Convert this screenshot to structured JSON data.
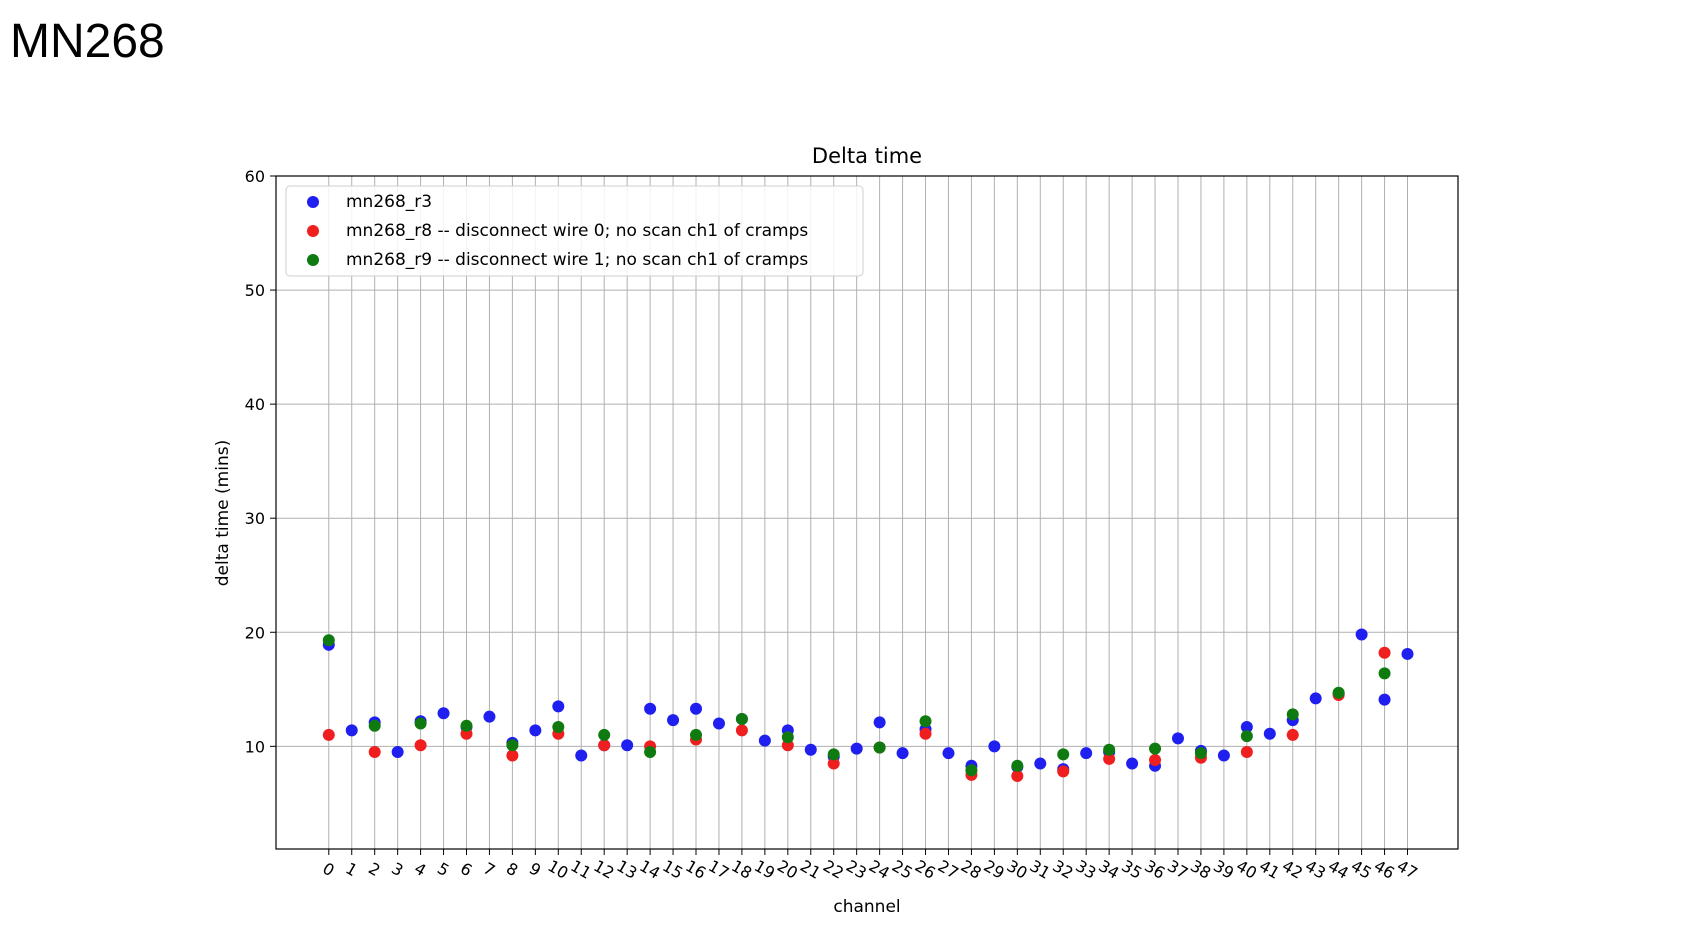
{
  "slide": {
    "title": "MN268"
  },
  "chart_data": {
    "type": "scatter",
    "title": "Delta time",
    "xlabel": "channel",
    "ylabel": "delta time (mins)",
    "ylim": [
      1,
      60
    ],
    "yticks": [
      10,
      20,
      30,
      40,
      50,
      60
    ],
    "xlim": [
      -2.3,
      49.2
    ],
    "xticks": [
      0,
      1,
      2,
      3,
      4,
      5,
      6,
      7,
      8,
      9,
      10,
      11,
      12,
      13,
      14,
      15,
      16,
      17,
      18,
      19,
      20,
      21,
      22,
      23,
      24,
      25,
      26,
      27,
      28,
      29,
      30,
      31,
      32,
      33,
      34,
      35,
      36,
      37,
      38,
      39,
      40,
      41,
      42,
      43,
      44,
      45,
      46,
      47
    ],
    "grid": true,
    "legend_position": "top-left",
    "series": [
      {
        "name": "mn268_r3",
        "color": "#1f1ff0",
        "x": [
          0,
          1,
          2,
          3,
          4,
          5,
          6,
          7,
          8,
          9,
          10,
          11,
          12,
          13,
          14,
          15,
          16,
          17,
          18,
          19,
          20,
          21,
          22,
          23,
          24,
          25,
          26,
          27,
          28,
          29,
          30,
          31,
          32,
          33,
          34,
          35,
          36,
          37,
          38,
          39,
          40,
          41,
          42,
          43,
          44,
          45,
          46,
          47
        ],
        "y": [
          18.9,
          11.4,
          12.1,
          9.5,
          12.2,
          12.9,
          11.7,
          12.6,
          10.3,
          11.4,
          13.5,
          9.2,
          10.1,
          10.1,
          13.3,
          12.3,
          13.3,
          12.0,
          12.4,
          10.5,
          11.4,
          9.7,
          9.1,
          9.8,
          12.1,
          9.4,
          11.5,
          9.4,
          8.3,
          10.0,
          8.2,
          8.5,
          8.0,
          9.4,
          9.5,
          8.5,
          8.3,
          10.7,
          9.6,
          9.2,
          11.7,
          11.1,
          12.3,
          14.2,
          14.6,
          19.8,
          14.1,
          18.1
        ]
      },
      {
        "name": "mn268_r8 -- disconnect wire 0; no scan ch1 of cramps",
        "color": "#f01f1f",
        "x": [
          0,
          2,
          4,
          6,
          8,
          10,
          12,
          14,
          16,
          18,
          20,
          22,
          24,
          26,
          28,
          30,
          32,
          34,
          36,
          38,
          40,
          42,
          44,
          46
        ],
        "y": [
          11.0,
          9.5,
          10.1,
          11.1,
          9.2,
          11.1,
          10.1,
          10.0,
          10.6,
          11.4,
          10.1,
          8.5,
          9.9,
          11.1,
          7.5,
          7.4,
          7.8,
          8.9,
          8.8,
          9.0,
          9.5,
          11.0,
          14.5,
          18.2
        ]
      },
      {
        "name": "mn268_r9 -- disconnect wire 1; no scan ch1 of cramps",
        "color": "#0f7a0f",
        "x": [
          0,
          2,
          4,
          6,
          8,
          10,
          12,
          14,
          16,
          18,
          20,
          22,
          24,
          26,
          28,
          30,
          32,
          34,
          36,
          38,
          40,
          42,
          44,
          46
        ],
        "y": [
          19.3,
          11.8,
          12.0,
          11.8,
          10.1,
          11.7,
          11.0,
          9.5,
          11.0,
          12.4,
          10.8,
          9.3,
          9.9,
          12.2,
          7.9,
          8.3,
          9.3,
          9.7,
          9.8,
          9.4,
          10.9,
          12.8,
          14.7,
          16.4
        ]
      }
    ]
  }
}
